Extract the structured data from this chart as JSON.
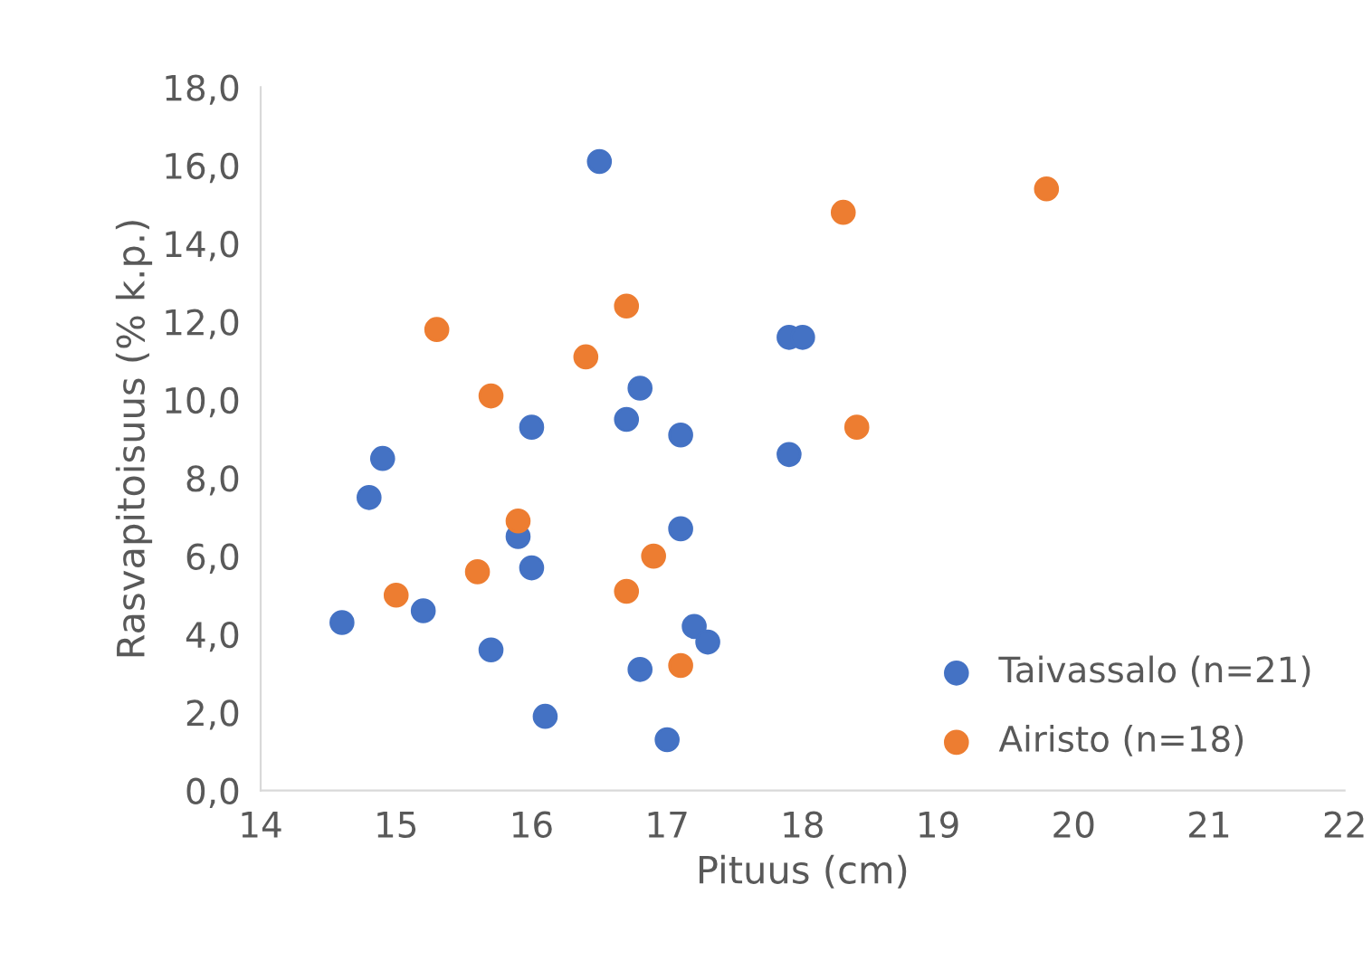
{
  "chart_data": {
    "type": "scatter",
    "xlabel": "Pituus (cm)",
    "ylabel": "Rasvapitoisuus (% k.p.)",
    "xlim": [
      14,
      22
    ],
    "xticks": [
      14,
      15,
      16,
      17,
      18,
      19,
      20,
      21,
      22
    ],
    "ylim": [
      0,
      18
    ],
    "yticks": [
      {
        "value": 0,
        "label": "0,0"
      },
      {
        "value": 2,
        "label": "2,0"
      },
      {
        "value": 4,
        "label": "4,0"
      },
      {
        "value": 6,
        "label": "6,0"
      },
      {
        "value": 8,
        "label": "8,0"
      },
      {
        "value": 10,
        "label": "10,0"
      },
      {
        "value": 12,
        "label": "12,0"
      },
      {
        "value": 14,
        "label": "14,0"
      },
      {
        "value": 16,
        "label": "16,0"
      },
      {
        "value": 18,
        "label": "18,0"
      }
    ],
    "grid": false,
    "legend": "bottom right",
    "marker": "circle",
    "series": [
      {
        "name": "Taivassalo (n=21)",
        "color": "#4472c4",
        "x": [
          14.6,
          14.8,
          14.9,
          15.2,
          15.7,
          15.9,
          16.0,
          16.0,
          16.1,
          16.5,
          16.7,
          16.8,
          16.8,
          17.0,
          17.1,
          17.1,
          17.2,
          17.3,
          17.9,
          18.0,
          17.9
        ],
        "values": [
          4.3,
          7.5,
          8.5,
          4.6,
          3.6,
          6.5,
          9.3,
          5.7,
          1.9,
          16.1,
          9.5,
          10.3,
          3.1,
          1.3,
          9.1,
          6.7,
          4.2,
          3.8,
          11.6,
          11.6,
          8.6
        ]
      },
      {
        "name": "Airisto (n=18)",
        "color": "#ed7d31",
        "x": [
          15.0,
          15.3,
          15.6,
          15.7,
          15.9,
          16.4,
          16.7,
          16.7,
          16.9,
          17.1,
          18.3,
          18.4,
          19.8
        ],
        "values": [
          5.0,
          11.8,
          5.6,
          10.1,
          6.9,
          11.1,
          12.4,
          5.1,
          6.0,
          3.2,
          14.8,
          9.3,
          15.4
        ]
      }
    ]
  }
}
